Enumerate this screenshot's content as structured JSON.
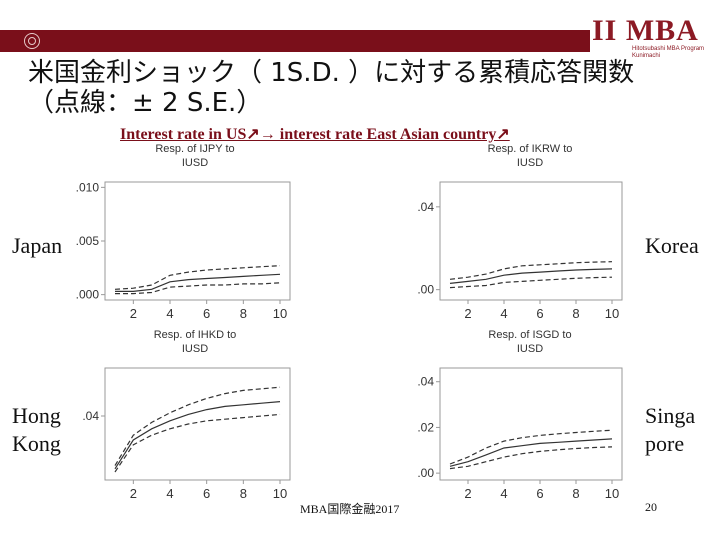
{
  "header": {
    "logo_text": "MBA",
    "logo_mark": "II",
    "logo_subtitle": "Hitotsubashi MBA Program Kunimachi"
  },
  "title": {
    "line1": "米国金利ショック（ 1S.D. ）に対する累積応答関数",
    "line2": "（点線：± 2 S.E.）"
  },
  "subtitle": "Interest rate in US↗→ interest rate East Asian country↗",
  "labels": {
    "japan": "Japan",
    "korea": "Korea",
    "hong_kong_1": "Hong",
    "hong_kong_2": "Kong",
    "singapore_1": "Singa",
    "singapore_2": "pore"
  },
  "footer": "MBA国際金融2017",
  "page_number": "20",
  "colors": {
    "line": "#333333",
    "axis": "#999999",
    "accent": "#7a0f1a"
  },
  "chart_data": [
    {
      "type": "line",
      "title": "Resp. of IJPY to IUSD",
      "x": [
        1,
        2,
        3,
        4,
        5,
        6,
        7,
        8,
        9,
        10
      ],
      "xticks": [
        "2",
        "4",
        "6",
        "8",
        "10"
      ],
      "yticks": [
        ".000",
        ".005",
        ".010"
      ],
      "ylim": [
        -0.0005,
        0.0105
      ],
      "series": [
        {
          "role": "estimate",
          "values": [
            0.0003,
            0.0003,
            0.0005,
            0.0012,
            0.0014,
            0.0015,
            0.0016,
            0.0017,
            0.0018,
            0.0019
          ]
        },
        {
          "role": "upper",
          "values": [
            0.0005,
            0.0006,
            0.0009,
            0.0018,
            0.0021,
            0.0023,
            0.0024,
            0.0025,
            0.0026,
            0.0027
          ]
        },
        {
          "role": "lower",
          "values": [
            0.0001,
            0.0001,
            0.0002,
            0.0007,
            0.0008,
            0.0009,
            0.0009,
            0.001,
            0.001,
            0.0011
          ]
        }
      ]
    },
    {
      "type": "line",
      "title": "Resp. of IKRW to IUSD",
      "x": [
        1,
        2,
        3,
        4,
        5,
        6,
        7,
        8,
        9,
        10
      ],
      "xticks": [
        "2",
        "4",
        "6",
        "8",
        "10"
      ],
      "yticks": [
        ".00",
        ".04"
      ],
      "ylim": [
        -0.005,
        0.052
      ],
      "series": [
        {
          "role": "estimate",
          "values": [
            0.003,
            0.004,
            0.005,
            0.007,
            0.008,
            0.0085,
            0.009,
            0.0095,
            0.0098,
            0.01
          ]
        },
        {
          "role": "upper",
          "values": [
            0.005,
            0.006,
            0.0075,
            0.01,
            0.0115,
            0.012,
            0.0125,
            0.013,
            0.0133,
            0.0135
          ]
        },
        {
          "role": "lower",
          "values": [
            0.001,
            0.0015,
            0.002,
            0.0035,
            0.004,
            0.0045,
            0.005,
            0.0055,
            0.0058,
            0.006
          ]
        }
      ]
    },
    {
      "type": "line",
      "title": "Resp. of IHKD to IUSD",
      "x": [
        1,
        2,
        3,
        4,
        5,
        6,
        7,
        8,
        9,
        10
      ],
      "xticks": [
        "2",
        "4",
        "6",
        "8",
        "10"
      ],
      "yticks": [
        ".04"
      ],
      "ylim": [
        0.0,
        0.07
      ],
      "series": [
        {
          "role": "estimate",
          "values": [
            0.007,
            0.025,
            0.032,
            0.037,
            0.041,
            0.044,
            0.046,
            0.047,
            0.048,
            0.049
          ]
        },
        {
          "role": "upper",
          "values": [
            0.009,
            0.028,
            0.036,
            0.042,
            0.047,
            0.051,
            0.054,
            0.056,
            0.057,
            0.058
          ]
        },
        {
          "role": "lower",
          "values": [
            0.005,
            0.022,
            0.028,
            0.032,
            0.035,
            0.037,
            0.038,
            0.039,
            0.04,
            0.041
          ]
        }
      ]
    },
    {
      "type": "line",
      "title": "Resp. of ISGD to IUSD",
      "x": [
        1,
        2,
        3,
        4,
        5,
        6,
        7,
        8,
        9,
        10
      ],
      "xticks": [
        "2",
        "4",
        "6",
        "8",
        "10"
      ],
      "yticks": [
        ".00",
        ".02",
        ".04"
      ],
      "ylim": [
        -0.003,
        0.046
      ],
      "series": [
        {
          "role": "estimate",
          "values": [
            0.003,
            0.005,
            0.008,
            0.011,
            0.012,
            0.013,
            0.0135,
            0.014,
            0.0145,
            0.015
          ]
        },
        {
          "role": "upper",
          "values": [
            0.004,
            0.007,
            0.011,
            0.014,
            0.0155,
            0.0165,
            0.0172,
            0.0178,
            0.0183,
            0.0188
          ]
        },
        {
          "role": "lower",
          "values": [
            0.002,
            0.003,
            0.005,
            0.007,
            0.0085,
            0.0095,
            0.0102,
            0.0108,
            0.0112,
            0.0115
          ]
        }
      ]
    }
  ]
}
